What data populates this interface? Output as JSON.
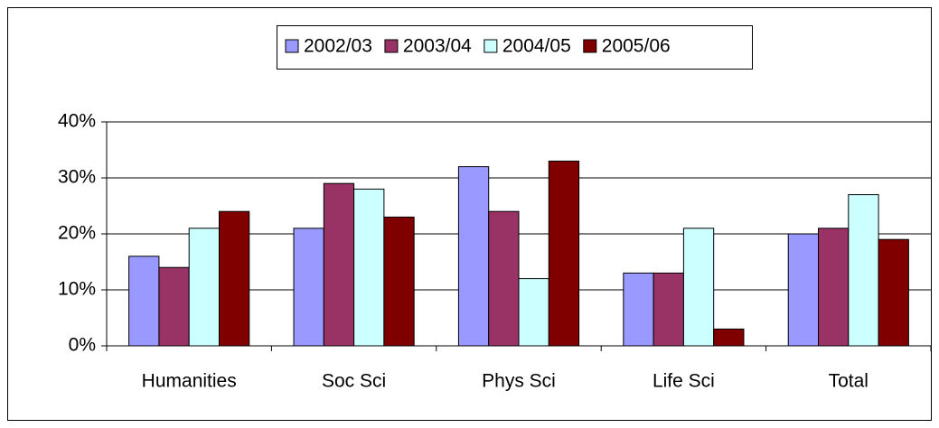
{
  "chart_data": {
    "type": "bar",
    "categories": [
      "Humanities",
      "Soc Sci",
      "Phys Sci",
      "Life Sci",
      "Total"
    ],
    "series": [
      {
        "name": "2002/03",
        "color": "#9999ff",
        "values": [
          16,
          21,
          32,
          13,
          20
        ]
      },
      {
        "name": "2003/04",
        "color": "#993366",
        "values": [
          14,
          29,
          24,
          13,
          21
        ]
      },
      {
        "name": "2004/05",
        "color": "#ccffff",
        "values": [
          21,
          28,
          12,
          21,
          27
        ]
      },
      {
        "name": "2005/06",
        "color": "#800000",
        "values": [
          24,
          23,
          33,
          3,
          19
        ]
      }
    ],
    "ylim": [
      0,
      40
    ],
    "yticks": [
      {
        "value": 0,
        "label": "0%"
      },
      {
        "value": 10,
        "label": "10%"
      },
      {
        "value": 20,
        "label": "20%"
      },
      {
        "value": 30,
        "label": "30%"
      },
      {
        "value": 40,
        "label": "40%"
      }
    ],
    "grid": true,
    "legend": "top"
  }
}
